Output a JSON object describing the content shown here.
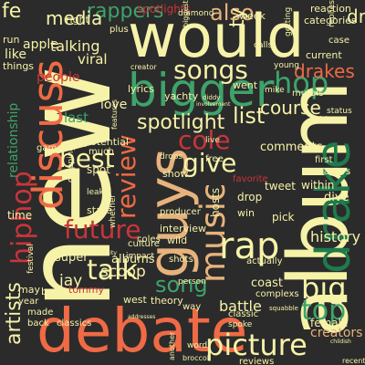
{
  "palette": {
    "background": "#2b2b2b",
    "cream": "#f6f2a8",
    "orange": "#ef6a45",
    "red": "#c9353b",
    "green": "#3ea36a",
    "dark_green": "#1f7a4c",
    "light_green": "#a6d9a4",
    "tan": "#e7b37c",
    "dark_red": "#8e1f2b"
  },
  "words": [
    {
      "text": "new",
      "color": "cream"
    },
    {
      "text": "album",
      "color": "cream"
    },
    {
      "text": "would",
      "color": "cream"
    },
    {
      "text": "debate",
      "color": "orange"
    },
    {
      "text": "guys",
      "color": "tan"
    },
    {
      "text": "drake",
      "color": "dark_green"
    },
    {
      "text": "bigger",
      "color": "green"
    },
    {
      "text": "discuss",
      "color": "orange"
    },
    {
      "text": "music",
      "color": "tan"
    },
    {
      "text": "rap",
      "color": "cream"
    },
    {
      "text": "picture",
      "color": "cream"
    },
    {
      "text": "hiphop",
      "color": "red"
    },
    {
      "text": "future",
      "color": "red"
    },
    {
      "text": "best",
      "color": "cream"
    },
    {
      "text": "talk",
      "color": "cream"
    },
    {
      "text": "big",
      "color": "cream"
    },
    {
      "text": "top",
      "color": "green"
    },
    {
      "text": "cole",
      "color": "red"
    },
    {
      "text": "give",
      "color": "cream"
    },
    {
      "text": "songs",
      "color": "cream"
    },
    {
      "text": "list",
      "color": "cream"
    },
    {
      "text": "hop",
      "color": "green"
    },
    {
      "text": "review",
      "color": "orange"
    },
    {
      "text": "also",
      "color": "tan"
    },
    {
      "text": "rappers",
      "color": "green"
    },
    {
      "text": "song",
      "color": "green"
    },
    {
      "text": "artists",
      "color": "cream"
    },
    {
      "text": "spotlight",
      "color": "cream"
    },
    {
      "text": "course",
      "color": "cream"
    },
    {
      "text": "drakes",
      "color": "orange"
    },
    {
      "text": "media",
      "color": "cream"
    },
    {
      "text": "apple",
      "color": "cream"
    },
    {
      "text": "talking",
      "color": "cream"
    },
    {
      "text": "viral",
      "color": "cream"
    },
    {
      "text": "like",
      "color": "cream"
    },
    {
      "text": "people",
      "color": "red"
    },
    {
      "text": "relationship",
      "color": "green"
    },
    {
      "text": "scoop",
      "color": "cream"
    },
    {
      "text": "jay",
      "color": "cream"
    },
    {
      "text": "creators",
      "color": "tan"
    },
    {
      "text": "battle",
      "color": "cream"
    },
    {
      "text": "history",
      "color": "cream"
    },
    {
      "text": "comments",
      "color": "cream"
    },
    {
      "text": "love",
      "color": "cream"
    },
    {
      "text": "last",
      "color": "green"
    },
    {
      "text": "albums",
      "color": "cream"
    },
    {
      "text": "fe",
      "color": "cream"
    },
    {
      "text": "ty",
      "color": "cream"
    },
    {
      "text": "dr",
      "color": "cream"
    },
    {
      "text": "right",
      "color": "cream"
    },
    {
      "text": "run",
      "color": "cream"
    },
    {
      "text": "week",
      "color": "cream"
    },
    {
      "text": "reaction",
      "color": "cream"
    },
    {
      "text": "categories",
      "color": "cream"
    },
    {
      "text": "spotlights",
      "color": "red"
    },
    {
      "text": "diamond",
      "color": "cream"
    },
    {
      "text": "getting",
      "color": "cream"
    },
    {
      "text": "time",
      "color": "cream"
    },
    {
      "text": "state",
      "color": "cream"
    },
    {
      "text": "spot",
      "color": "cream"
    },
    {
      "text": "whether",
      "color": "cream"
    },
    {
      "text": "interview",
      "color": "cream"
    },
    {
      "text": "producer",
      "color": "cream"
    },
    {
      "text": "show",
      "color": "cream"
    },
    {
      "text": "wild",
      "color": "cream"
    },
    {
      "text": "coles",
      "color": "cream"
    },
    {
      "text": "super",
      "color": "cream"
    },
    {
      "text": "bowl",
      "color": "cream"
    },
    {
      "text": "tommy",
      "color": "red"
    },
    {
      "text": "festival",
      "color": "cream"
    },
    {
      "text": "west",
      "color": "cream"
    },
    {
      "text": "theory",
      "color": "cream"
    },
    {
      "text": "classics",
      "color": "cream"
    },
    {
      "text": "back",
      "color": "cream"
    },
    {
      "text": "made",
      "color": "cream"
    },
    {
      "text": "may",
      "color": "cream"
    },
    {
      "text": "year",
      "color": "cream"
    },
    {
      "text": "word",
      "color": "cream"
    },
    {
      "text": "broccoli",
      "color": "cream"
    },
    {
      "text": "female",
      "color": "cream"
    },
    {
      "text": "reviews",
      "color": "cream"
    },
    {
      "text": "recent",
      "color": "cream"
    },
    {
      "text": "actually",
      "color": "cream"
    },
    {
      "text": "coast",
      "color": "cream"
    },
    {
      "text": "complexs",
      "color": "cream"
    },
    {
      "text": "pick",
      "color": "cream"
    },
    {
      "text": "dive",
      "color": "cream"
    },
    {
      "text": "within",
      "color": "cream"
    },
    {
      "text": "tweet",
      "color": "cream"
    },
    {
      "text": "first",
      "color": "cream"
    },
    {
      "text": "matters",
      "color": "cream"
    },
    {
      "text": "mike",
      "color": "cream"
    },
    {
      "text": "murals",
      "color": "cream"
    },
    {
      "text": "video",
      "color": "cream"
    },
    {
      "text": "status",
      "color": "cream"
    },
    {
      "text": "went",
      "color": "cream"
    },
    {
      "text": "drop",
      "color": "cream"
    },
    {
      "text": "win",
      "color": "cream"
    },
    {
      "text": "hosts",
      "color": "cream"
    },
    {
      "text": "potential",
      "color": "cream"
    },
    {
      "text": "game",
      "color": "cream"
    },
    {
      "text": "much",
      "color": "cream"
    },
    {
      "text": "dropping",
      "color": "cream"
    },
    {
      "text": "leak",
      "color": "cream"
    },
    {
      "text": "yachty",
      "color": "cream"
    },
    {
      "text": "creator",
      "color": "cream"
    },
    {
      "text": "things",
      "color": "cream"
    },
    {
      "text": "young",
      "color": "cream"
    },
    {
      "text": "calls",
      "color": "cream"
    },
    {
      "text": "current",
      "color": "cream"
    },
    {
      "text": "replies",
      "color": "cream"
    },
    {
      "text": "case",
      "color": "cream"
    },
    {
      "text": "plus",
      "color": "cream"
    },
    {
      "text": "biggest",
      "color": "cream"
    },
    {
      "text": "lyrics",
      "color": "cream"
    },
    {
      "text": "culture",
      "color": "cream"
    },
    {
      "text": "impact",
      "color": "cream"
    },
    {
      "text": "shots",
      "color": "cream"
    },
    {
      "text": "person",
      "color": "cream"
    },
    {
      "text": "way",
      "color": "cream"
    },
    {
      "text": "another",
      "color": "cream"
    },
    {
      "text": "spoke",
      "color": "cream"
    },
    {
      "text": "classic",
      "color": "cream"
    },
    {
      "text": "drops",
      "color": "cream"
    },
    {
      "text": "free",
      "color": "cream"
    },
    {
      "text": "live",
      "color": "cream"
    },
    {
      "text": "favorite",
      "color": "red"
    },
    {
      "text": "responsibility",
      "color": "cream"
    },
    {
      "text": "addresses",
      "color": "cream"
    },
    {
      "text": "involvement",
      "color": "cream"
    },
    {
      "text": "diddy",
      "color": "cream"
    },
    {
      "text": "features",
      "color": "cream"
    },
    {
      "text": "squabble",
      "color": "cream"
    },
    {
      "text": "childish",
      "color": "cream"
    }
  ]
}
